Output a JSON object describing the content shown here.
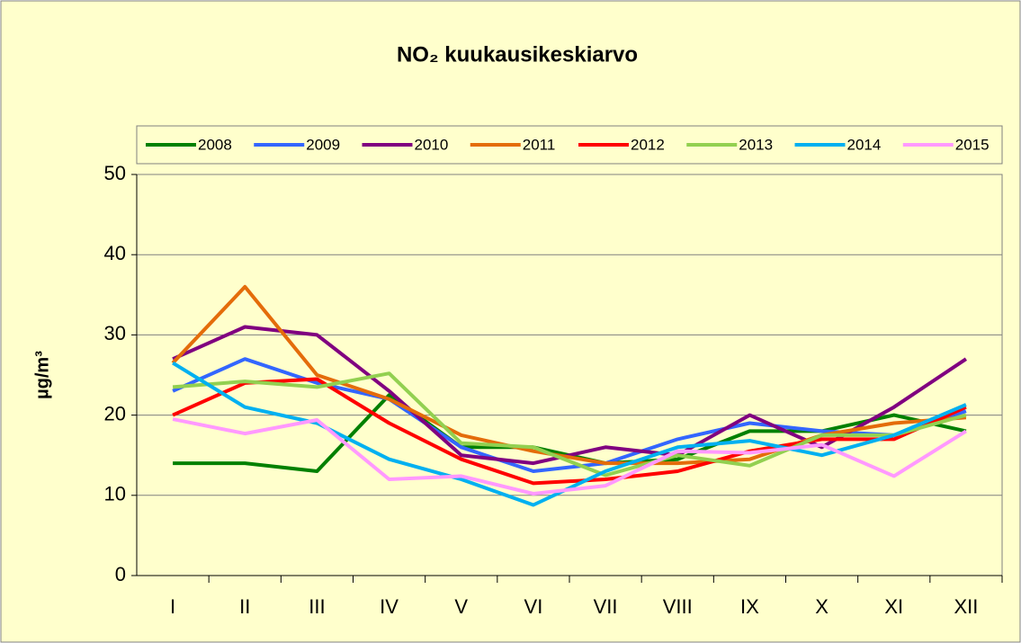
{
  "chart_data": {
    "type": "line",
    "title": "NO₂ kuukausikeskiarvo",
    "y_label": "µg/m³",
    "categories": [
      "I",
      "II",
      "III",
      "IV",
      "V",
      "VI",
      "VII",
      "VIII",
      "IX",
      "X",
      "XI",
      "XII"
    ],
    "ylim": [
      0,
      50
    ],
    "yticks": [
      0,
      10,
      20,
      30,
      40,
      50
    ],
    "grid": true,
    "legend": "top",
    "series": [
      {
        "name": "2008",
        "color": "#008000",
        "values": [
          14,
          14,
          13,
          22.5,
          16,
          16,
          14,
          14.5,
          18,
          18,
          20,
          18
        ]
      },
      {
        "name": "2009",
        "color": "#3366ff",
        "values": [
          23,
          27,
          24,
          22,
          16,
          13,
          14,
          17,
          19,
          18,
          17.5,
          20.5
        ]
      },
      {
        "name": "2010",
        "color": "#800080",
        "values": [
          27,
          31,
          30,
          23,
          15,
          14,
          16,
          15,
          20,
          16,
          21,
          27
        ]
      },
      {
        "name": "2011",
        "color": "#e46c0a",
        "values": [
          26.5,
          36,
          25,
          22,
          17.5,
          15.5,
          14,
          14,
          14.5,
          17.5,
          19,
          19.7
        ]
      },
      {
        "name": "2012",
        "color": "#ff0000",
        "values": [
          20,
          24,
          24.5,
          19,
          14.5,
          11.5,
          12,
          13,
          15.5,
          17,
          17,
          21
        ]
      },
      {
        "name": "2013",
        "color": "#92d050",
        "values": [
          23.5,
          24.2,
          23.5,
          25.2,
          16.5,
          16,
          12.5,
          15,
          13.7,
          17.5,
          17.5,
          20
        ]
      },
      {
        "name": "2014",
        "color": "#00b0f0",
        "values": [
          26.5,
          21,
          19,
          14.5,
          12,
          8.8,
          13,
          16,
          16.8,
          15,
          17.5,
          21.3
        ]
      },
      {
        "name": "2015",
        "color": "#ff99ff",
        "values": [
          19.5,
          17.7,
          19.4,
          12,
          12.4,
          10.2,
          11.2,
          15.5,
          15.3,
          16.3,
          12.4,
          18
        ]
      }
    ]
  }
}
